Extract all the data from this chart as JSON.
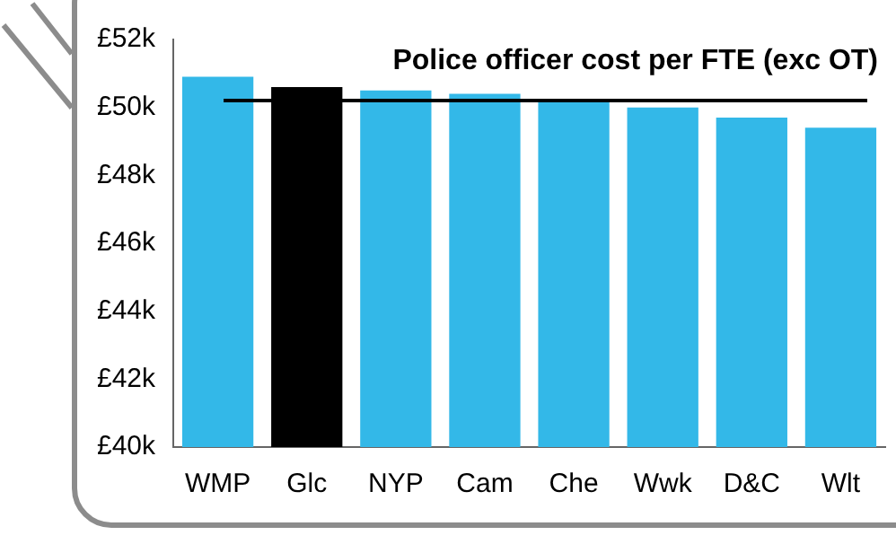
{
  "chart_data": {
    "type": "bar",
    "title": "Police officer cost per FTE (exc OT)",
    "categories": [
      "WMP",
      "Glc",
      "NYP",
      "Cam",
      "Che",
      "Wwk",
      "D&C",
      "Wlt"
    ],
    "values": [
      50.9,
      50.6,
      50.5,
      50.4,
      50.2,
      50.0,
      49.7,
      49.4
    ],
    "colors": [
      "#33b8e8",
      "#000000",
      "#33b8e8",
      "#33b8e8",
      "#33b8e8",
      "#33b8e8",
      "#33b8e8",
      "#33b8e8"
    ],
    "ylim": [
      40,
      52
    ],
    "yticks": [
      {
        "value": 40,
        "label": "£40k"
      },
      {
        "value": 42,
        "label": "£42k"
      },
      {
        "value": 44,
        "label": "£44k"
      },
      {
        "value": 46,
        "label": "£46k"
      },
      {
        "value": 48,
        "label": "£48k"
      },
      {
        "value": 50,
        "label": "£50k"
      },
      {
        "value": 52,
        "label": "£52k"
      }
    ],
    "ref_lines": [
      {
        "axis": "y",
        "value": 50.2,
        "color": "#000000"
      }
    ],
    "grid": false,
    "legend": false
  }
}
